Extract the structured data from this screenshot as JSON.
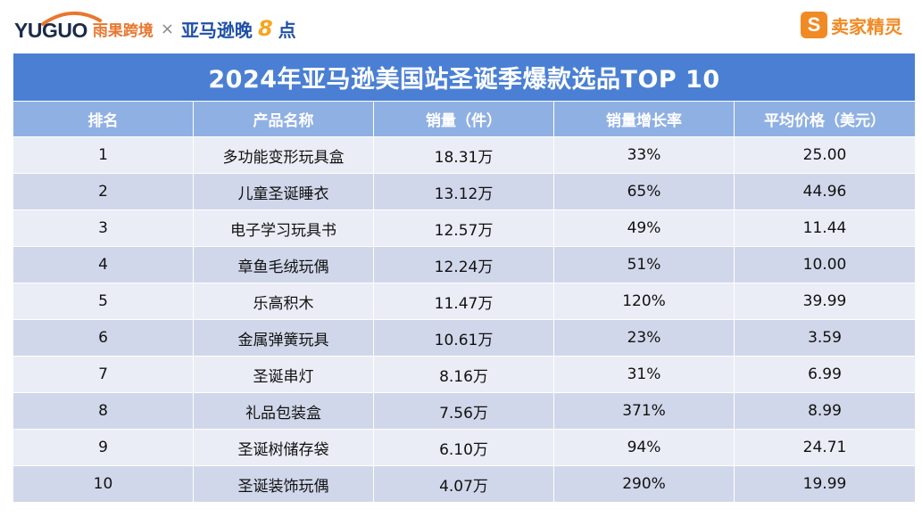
{
  "header": {
    "yuguo_logo": "YUGUO",
    "yuguo_cn": "雨果跨境",
    "times": "×",
    "amz_cn": "亚马逊晚",
    "amz_8": "8",
    "amz_dian": "点",
    "right_badge": "S",
    "right_brand": "卖家精灵",
    "colors": {
      "yuguo_orange": "#e8772e",
      "amz_blue": "#1f4fa8",
      "seller_orange": "#f08a24"
    }
  },
  "table": {
    "title": "2024年亚马逊美国站圣诞季爆款选品TOP 10",
    "columns": [
      "排名",
      "产品名称",
      "销量（件）",
      "销量增长率",
      "平均价格（美元）"
    ],
    "rows": [
      [
        "1",
        "多功能变形玩具盒",
        "18.31万",
        "33%",
        "25.00"
      ],
      [
        "2",
        "儿童圣诞睡衣",
        "13.12万",
        "65%",
        "44.96"
      ],
      [
        "3",
        "电子学习玩具书",
        "12.57万",
        "49%",
        "11.44"
      ],
      [
        "4",
        "章鱼毛绒玩偶",
        "12.24万",
        "51%",
        "10.00"
      ],
      [
        "5",
        "乐高积木",
        "11.47万",
        "120%",
        "39.99"
      ],
      [
        "6",
        "金属弹簧玩具",
        "10.61万",
        "23%",
        "3.59"
      ],
      [
        "7",
        "圣诞串灯",
        "8.16万",
        "31%",
        "6.99"
      ],
      [
        "8",
        "礼品包装盒",
        "7.56万",
        "371%",
        "8.99"
      ],
      [
        "9",
        "圣诞树储存袋",
        "6.10万",
        "94%",
        "24.71"
      ],
      [
        "10",
        "圣诞装饰玩偶",
        "4.07万",
        "290%",
        "19.99"
      ]
    ],
    "colors": {
      "title_bg": "#4a7fd4",
      "header_bg": "#8fb0e3",
      "row_light": "#eaedf6",
      "row_dark": "#d1d7ea"
    }
  }
}
